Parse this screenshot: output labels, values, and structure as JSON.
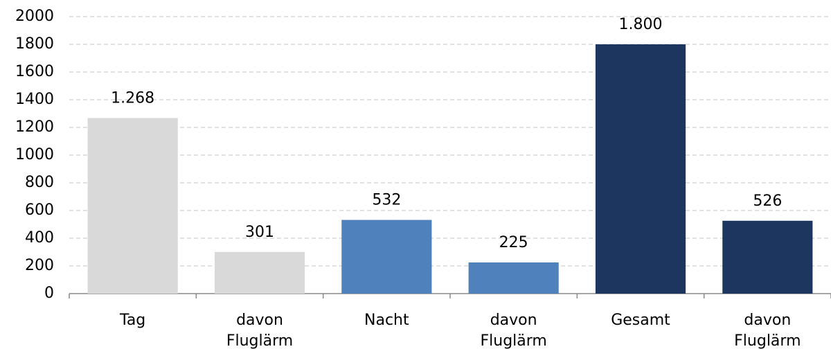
{
  "chart_data": {
    "type": "bar",
    "categories": [
      "Tag",
      "davon Fluglärm",
      "Nacht",
      "davon Fluglärm",
      "Gesamt",
      "davon Fluglärm"
    ],
    "values": [
      1268,
      301,
      532,
      225,
      1800,
      526
    ],
    "value_labels": [
      "1.268",
      "301",
      "532",
      "225",
      "1.800",
      "526"
    ],
    "colors": [
      "#d9d9d9",
      "#d9d9d9",
      "#4f81bd",
      "#4f81bd",
      "#1c3660",
      "#1c3660"
    ],
    "ylim": [
      0,
      2000
    ],
    "yticks": [
      0,
      200,
      400,
      600,
      800,
      1000,
      1200,
      1400,
      1600,
      1800,
      2000
    ],
    "grid": true
  }
}
